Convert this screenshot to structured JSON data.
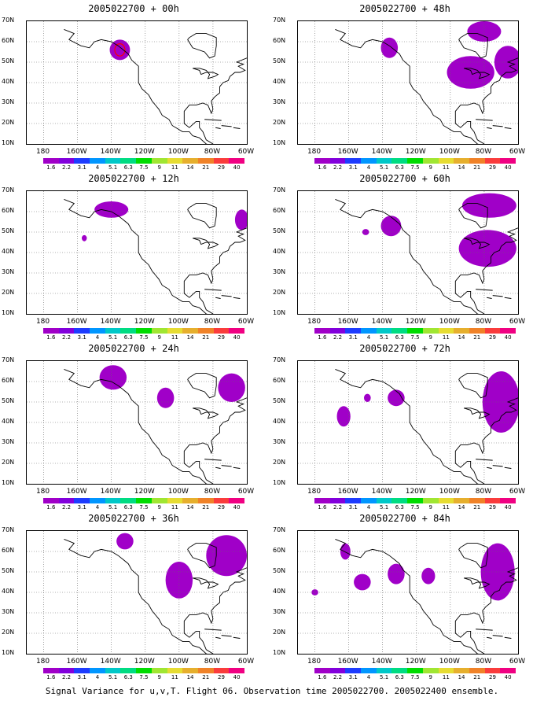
{
  "colorbar": {
    "labels": [
      "1.6",
      "2.2",
      "3.1",
      "4",
      "5.1",
      "6.3",
      "7.5",
      "9",
      "11",
      "14",
      "21",
      "29",
      "40"
    ],
    "colors": [
      "#a000c8",
      "#8200dc",
      "#1e3cff",
      "#0096ff",
      "#00c8c8",
      "#00dc82",
      "#00dc00",
      "#a0e632",
      "#e6dc32",
      "#e6af2d",
      "#f08228",
      "#fa3c3c",
      "#f00082"
    ]
  },
  "y_ticks": [
    "70N",
    "60N",
    "50N",
    "40N",
    "30N",
    "20N",
    "10N"
  ],
  "x_ticks": [
    "180",
    "160W",
    "140W",
    "120W",
    "100W",
    "80W",
    "60W"
  ],
  "panels": [
    {
      "title": "2005022700 + 00h",
      "blobs": [
        {
          "lon": -135,
          "lat": 56,
          "rx": 6,
          "ry": 5,
          "c": "#a000c8"
        }
      ],
      "red": true
    },
    {
      "title": "2005022700 + 48h",
      "blobs": [
        {
          "lon": -136,
          "lat": 57,
          "rx": 5,
          "ry": 5,
          "c": "#a000c8"
        },
        {
          "lon": -88,
          "lat": 45,
          "rx": 14,
          "ry": 8,
          "c": "#a000c8"
        },
        {
          "lon": -80,
          "lat": 65,
          "rx": 10,
          "ry": 5,
          "c": "#a000c8"
        },
        {
          "lon": -66,
          "lat": 50,
          "rx": 8,
          "ry": 8,
          "c": "#a000c8"
        }
      ]
    },
    {
      "title": "2005022700 + 12h",
      "blobs": [
        {
          "lon": -140,
          "lat": 61,
          "rx": 10,
          "ry": 4,
          "c": "#a000c8"
        },
        {
          "lon": -156,
          "lat": 47,
          "rx": 1.5,
          "ry": 1.5,
          "c": "#a000c8"
        },
        {
          "lon": -63,
          "lat": 56,
          "rx": 4,
          "ry": 5,
          "c": "#a000c8"
        }
      ]
    },
    {
      "title": "2005022700 + 60h",
      "blobs": [
        {
          "lon": -135,
          "lat": 53,
          "rx": 6,
          "ry": 5,
          "c": "#a000c8"
        },
        {
          "lon": -150,
          "lat": 50,
          "rx": 2,
          "ry": 1.5,
          "c": "#a000c8"
        },
        {
          "lon": -78,
          "lat": 42,
          "rx": 17,
          "ry": 9,
          "c": "#a000c8"
        },
        {
          "lon": -77,
          "lat": 63,
          "rx": 16,
          "ry": 6,
          "c": "#a000c8"
        }
      ]
    },
    {
      "title": "2005022700 + 24h",
      "blobs": [
        {
          "lon": -139,
          "lat": 62,
          "rx": 8,
          "ry": 6,
          "c": "#a000c8"
        },
        {
          "lon": -108,
          "lat": 52,
          "rx": 5,
          "ry": 5,
          "c": "#a000c8"
        },
        {
          "lon": -69,
          "lat": 57,
          "rx": 8,
          "ry": 7,
          "c": "#a000c8"
        }
      ]
    },
    {
      "title": "2005022700 + 72h",
      "blobs": [
        {
          "lon": -163,
          "lat": 43,
          "rx": 4,
          "ry": 5,
          "c": "#a000c8"
        },
        {
          "lon": -149,
          "lat": 52,
          "rx": 2,
          "ry": 2,
          "c": "#a000c8"
        },
        {
          "lon": -132,
          "lat": 52,
          "rx": 5,
          "ry": 4,
          "c": "#a000c8"
        },
        {
          "lon": -70,
          "lat": 50,
          "rx": 11,
          "ry": 15,
          "c": "#a000c8"
        }
      ]
    },
    {
      "title": "2005022700 + 36h",
      "blobs": [
        {
          "lon": -100,
          "lat": 46,
          "rx": 8,
          "ry": 9,
          "c": "#a000c8"
        },
        {
          "lon": -132,
          "lat": 65,
          "rx": 5,
          "ry": 4,
          "c": "#a000c8"
        },
        {
          "lon": -72,
          "lat": 58,
          "rx": 12,
          "ry": 10,
          "c": "#a000c8"
        }
      ]
    },
    {
      "title": "2005022700 + 84h",
      "blobs": [
        {
          "lon": -180,
          "lat": 40,
          "rx": 2,
          "ry": 1.5,
          "c": "#a000c8"
        },
        {
          "lon": -152,
          "lat": 45,
          "rx": 5,
          "ry": 4,
          "c": "#a000c8"
        },
        {
          "lon": -132,
          "lat": 49,
          "rx": 5,
          "ry": 5,
          "c": "#a000c8"
        },
        {
          "lon": -113,
          "lat": 48,
          "rx": 4,
          "ry": 4,
          "c": "#a000c8"
        },
        {
          "lon": -162,
          "lat": 60,
          "rx": 3,
          "ry": 4,
          "c": "#a000c8"
        },
        {
          "lon": -72,
          "lat": 50,
          "rx": 10,
          "ry": 14,
          "c": "#a000c8"
        }
      ]
    }
  ],
  "caption": "Signal Variance for u,v,T. Flight 06. Observation time 2005022700. 2005022400 ensemble."
}
